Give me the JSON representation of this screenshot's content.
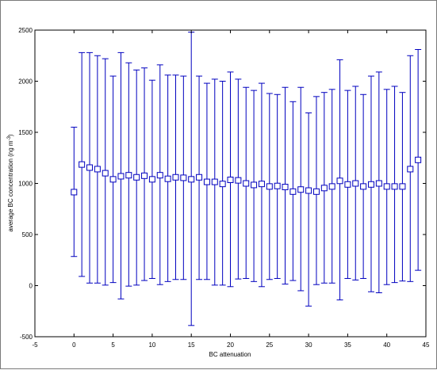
{
  "chart_data": {
    "type": "scatter",
    "title": "",
    "xlabel": "BC attenuation",
    "ylabel_main": "average BC concentration (ng m",
    "ylabel_sup": "-3",
    "ylabel_tail": ")",
    "xlim": [
      -5,
      45
    ],
    "ylim": [
      -500,
      2500
    ],
    "xticks": [
      -5,
      0,
      5,
      10,
      15,
      20,
      25,
      30,
      35,
      40,
      45
    ],
    "yticks": [
      -500,
      0,
      500,
      1000,
      1500,
      2000,
      2500
    ],
    "grid": false,
    "marker": "square",
    "color": "#0000bf",
    "x": [
      0,
      1,
      2,
      3,
      4,
      5,
      6,
      7,
      8,
      9,
      10,
      11,
      12,
      13,
      14,
      15,
      16,
      17,
      18,
      19,
      20,
      21,
      22,
      23,
      24,
      25,
      26,
      27,
      28,
      29,
      30,
      31,
      32,
      33,
      34,
      35,
      36,
      37,
      38,
      39,
      40,
      41,
      42,
      43,
      44
    ],
    "y": [
      915,
      1185,
      1155,
      1140,
      1100,
      1040,
      1070,
      1080,
      1060,
      1075,
      1040,
      1080,
      1045,
      1060,
      1055,
      1040,
      1060,
      1015,
      1015,
      995,
      1035,
      1030,
      1000,
      985,
      995,
      970,
      975,
      965,
      920,
      940,
      930,
      920,
      955,
      970,
      1025,
      990,
      1000,
      970,
      990,
      1000,
      970,
      970,
      970,
      1140,
      1230
    ],
    "err_high": [
      1550,
      2280,
      2280,
      2250,
      2220,
      2050,
      2280,
      2180,
      2110,
      2130,
      2010,
      2160,
      2060,
      2060,
      2050,
      2480,
      2050,
      1980,
      2020,
      2000,
      2090,
      2020,
      1940,
      1910,
      1980,
      1880,
      1870,
      1940,
      1800,
      1940,
      1690,
      1850,
      1890,
      1920,
      2210,
      1910,
      1950,
      1870,
      2050,
      2090,
      1920,
      1950,
      1890,
      2250,
      2310
    ],
    "err_low": [
      285,
      90,
      25,
      25,
      5,
      30,
      -130,
      -5,
      5,
      50,
      70,
      10,
      40,
      60,
      60,
      -390,
      60,
      60,
      5,
      5,
      -10,
      65,
      70,
      40,
      -10,
      60,
      70,
      15,
      50,
      -50,
      -200,
      10,
      25,
      25,
      -140,
      70,
      55,
      70,
      -60,
      -70,
      10,
      30,
      45,
      40,
      150
    ]
  }
}
